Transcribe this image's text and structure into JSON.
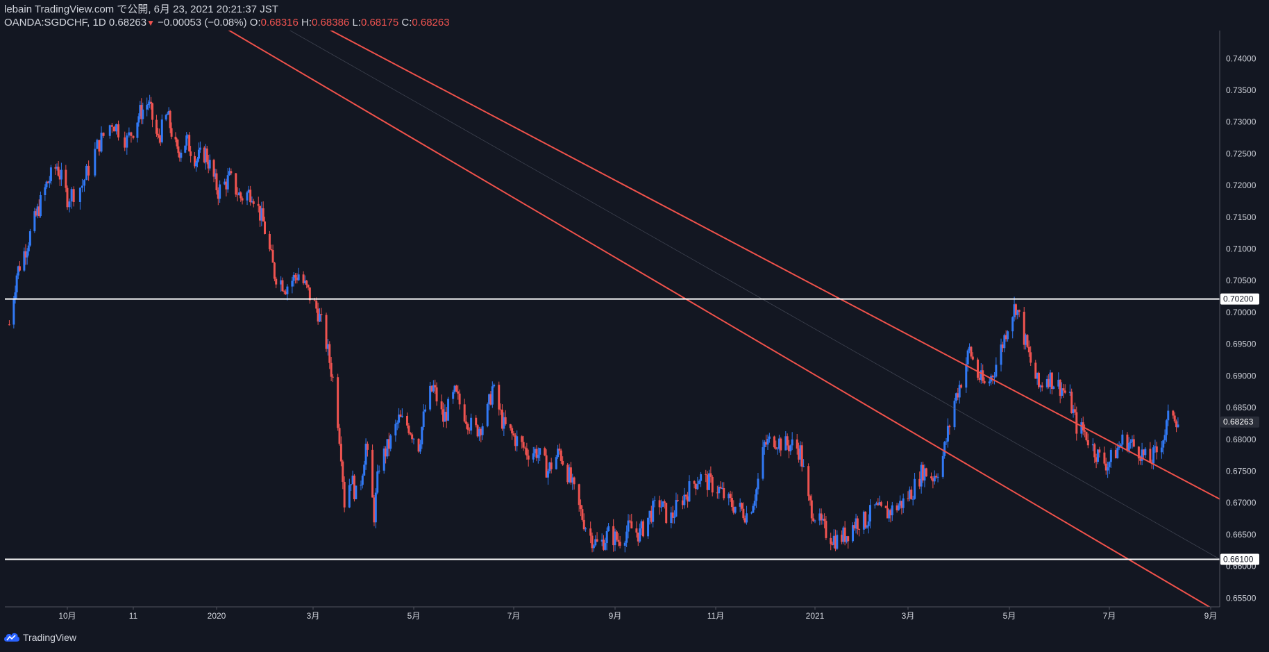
{
  "header": {
    "published": "lebain TradingView.com で公開, 6月 23, 2021 20:21:37 JST",
    "symbol_interval": "OANDA:SGDCHF, 1D",
    "last": "0.68263",
    "change_arrow": "▼",
    "change": "−0.00053 (−0.08%)",
    "o_label": "O:",
    "o_value": "0.68316",
    "h_label": "H:",
    "h_value": "0.68386",
    "l_label": "L:",
    "l_value": "0.68175",
    "c_label": "C:",
    "c_value": "0.68263"
  },
  "footer": {
    "brand": "TradingView",
    "logo_icon": "tradingview-cloud-icon"
  },
  "colors": {
    "background": "#131722",
    "up": "#3179f5",
    "down": "#ef5350",
    "trendline": "#f0524b",
    "axis_text": "#d1d4dc",
    "hline": "#ffffff"
  },
  "chart_data": {
    "type": "candlestick",
    "symbol": "OANDA:SGDCHF",
    "interval": "1D",
    "x_ticks": [
      "10月",
      "11",
      "2020",
      "3月",
      "5月",
      "7月",
      "9月",
      "11月",
      "2021",
      "3月",
      "5月",
      "7月",
      "9月"
    ],
    "y_ticks": [
      "0.74000",
      "0.73500",
      "0.73000",
      "0.72500",
      "0.72000",
      "0.71500",
      "0.71000",
      "0.70500",
      "0.70000",
      "0.69500",
      "0.69000",
      "0.68500",
      "0.68000",
      "0.67500",
      "0.67000",
      "0.66500",
      "0.66000",
      "0.65500"
    ],
    "ylim": [
      0.6535,
      0.7443
    ],
    "price_labels": [
      {
        "text": "0.70200",
        "value": 0.702,
        "style": "white"
      },
      {
        "text": "0.68263",
        "value": 0.68263,
        "style": "last"
      },
      {
        "text": "0.66100",
        "value": 0.661,
        "style": "white"
      }
    ],
    "horizontal_lines": [
      0.702,
      0.661
    ],
    "close_path": [
      [
        "2019-08-23",
        0.698
      ],
      [
        "2019-08-28",
        0.706
      ],
      [
        "2019-09-03",
        0.71
      ],
      [
        "2019-09-10",
        0.715
      ],
      [
        "2019-09-17",
        0.72
      ],
      [
        "2019-09-24",
        0.723
      ],
      [
        "2019-10-01",
        0.718
      ],
      [
        "2019-10-08",
        0.72
      ],
      [
        "2019-10-15",
        0.726
      ],
      [
        "2019-10-22",
        0.73
      ],
      [
        "2019-10-29",
        0.727
      ],
      [
        "2019-11-05",
        0.731
      ],
      [
        "2019-11-12",
        0.733
      ],
      [
        "2019-11-19",
        0.727
      ],
      [
        "2019-11-26",
        0.731
      ],
      [
        "2019-12-03",
        0.725
      ],
      [
        "2019-12-10",
        0.727
      ],
      [
        "2019-12-17",
        0.724
      ],
      [
        "2019-12-24",
        0.725
      ],
      [
        "2020-01-02",
        0.719
      ],
      [
        "2020-01-09",
        0.721
      ],
      [
        "2020-01-16",
        0.718
      ],
      [
        "2020-01-23",
        0.719
      ],
      [
        "2020-01-30",
        0.714
      ],
      [
        "2020-02-06",
        0.706
      ],
      [
        "2020-02-13",
        0.704
      ],
      [
        "2020-02-21",
        0.706
      ],
      [
        "2020-02-27",
        0.703
      ],
      [
        "2020-03-04",
        0.7
      ],
      [
        "2020-03-09",
        0.695
      ],
      [
        "2020-03-14",
        0.688
      ],
      [
        "2020-03-18",
        0.678
      ],
      [
        "2020-03-20",
        0.67
      ],
      [
        "2020-03-24",
        0.674
      ],
      [
        "2020-03-28",
        0.67
      ],
      [
        "2020-04-02",
        0.679
      ],
      [
        "2020-04-07",
        0.668
      ],
      [
        "2020-04-10",
        0.676
      ],
      [
        "2020-04-16",
        0.679
      ],
      [
        "2020-04-22",
        0.683
      ],
      [
        "2020-04-28",
        0.682
      ],
      [
        "2020-05-04",
        0.679
      ],
      [
        "2020-05-09",
        0.686
      ],
      [
        "2020-05-13",
        0.688
      ],
      [
        "2020-05-19",
        0.683
      ],
      [
        "2020-05-26",
        0.687
      ],
      [
        "2020-06-01",
        0.684
      ],
      [
        "2020-06-07",
        0.681
      ],
      [
        "2020-06-14",
        0.683
      ],
      [
        "2020-06-18",
        0.688
      ],
      [
        "2020-06-25",
        0.682
      ],
      [
        "2020-07-02",
        0.68
      ],
      [
        "2020-07-09",
        0.678
      ],
      [
        "2020-07-15",
        0.678
      ],
      [
        "2020-07-22",
        0.675
      ],
      [
        "2020-07-29",
        0.678
      ],
      [
        "2020-08-04",
        0.674
      ],
      [
        "2020-08-10",
        0.669
      ],
      [
        "2020-08-16",
        0.665
      ],
      [
        "2020-08-22",
        0.663
      ],
      [
        "2020-08-28",
        0.665
      ],
      [
        "2020-09-03",
        0.664
      ],
      [
        "2020-09-10",
        0.666
      ],
      [
        "2020-09-16",
        0.665
      ],
      [
        "2020-09-22",
        0.668
      ],
      [
        "2020-09-28",
        0.67
      ],
      [
        "2020-10-04",
        0.667
      ],
      [
        "2020-10-10",
        0.67
      ],
      [
        "2020-10-16",
        0.672
      ],
      [
        "2020-10-22",
        0.674
      ],
      [
        "2020-10-28",
        0.673
      ],
      [
        "2020-11-03",
        0.672
      ],
      [
        "2020-11-09",
        0.67
      ],
      [
        "2020-11-15",
        0.669
      ],
      [
        "2020-11-21",
        0.668
      ],
      [
        "2020-11-26",
        0.672
      ],
      [
        "2020-12-01",
        0.679
      ],
      [
        "2020-12-07",
        0.68
      ],
      [
        "2020-12-13",
        0.679
      ],
      [
        "2020-12-19",
        0.679
      ],
      [
        "2020-12-23",
        0.678
      ],
      [
        "2020-12-28",
        0.67
      ],
      [
        "2021-01-03",
        0.667
      ],
      [
        "2021-01-09",
        0.665
      ],
      [
        "2021-01-15",
        0.664
      ],
      [
        "2021-01-21",
        0.665
      ],
      [
        "2021-01-27",
        0.667
      ],
      [
        "2021-02-02",
        0.667
      ],
      [
        "2021-02-08",
        0.669
      ],
      [
        "2021-02-14",
        0.668
      ],
      [
        "2021-02-20",
        0.669
      ],
      [
        "2021-02-26",
        0.67
      ],
      [
        "2021-03-04",
        0.672
      ],
      [
        "2021-03-10",
        0.675
      ],
      [
        "2021-03-16",
        0.674
      ],
      [
        "2021-03-21",
        0.676
      ],
      [
        "2021-03-25",
        0.681
      ],
      [
        "2021-03-29",
        0.686
      ],
      [
        "2021-04-03",
        0.69
      ],
      [
        "2021-04-07",
        0.694
      ],
      [
        "2021-04-12",
        0.69
      ],
      [
        "2021-04-17",
        0.688
      ],
      [
        "2021-04-22",
        0.691
      ],
      [
        "2021-04-27",
        0.695
      ],
      [
        "2021-05-01",
        0.699
      ],
      [
        "2021-05-05",
        0.701
      ],
      [
        "2021-05-10",
        0.696
      ],
      [
        "2021-05-14",
        0.692
      ],
      [
        "2021-05-19",
        0.688
      ],
      [
        "2021-05-24",
        0.69
      ],
      [
        "2021-05-28",
        0.689
      ],
      [
        "2021-06-02",
        0.688
      ],
      [
        "2021-06-07",
        0.686
      ],
      [
        "2021-06-11",
        0.682
      ],
      [
        "2021-06-16",
        0.681
      ],
      [
        "2021-06-20",
        0.679
      ],
      [
        "2021-06-25",
        0.677
      ],
      [
        "2021-06-30",
        0.676
      ],
      [
        "2021-07-05",
        0.678
      ],
      [
        "2021-07-10",
        0.68
      ],
      [
        "2021-07-15",
        0.679
      ],
      [
        "2021-07-20",
        0.678
      ],
      [
        "2021-07-25",
        0.676
      ],
      [
        "2021-07-30",
        0.678
      ],
      [
        "2021-08-04",
        0.681
      ],
      [
        "2021-08-08",
        0.685
      ],
      [
        "2021-08-12",
        0.6826
      ]
    ],
    "trend_lines": [
      {
        "from": [
          "2020-02-21",
          0.747
        ],
        "to": [
          "2021-09-10",
          0.67
        ]
      },
      {
        "from": [
          "2019-12-20",
          0.747
        ],
        "to": [
          "2021-09-10",
          0.652
        ]
      },
      {
        "from": [
          "2020-01-28",
          0.747
        ],
        "to": [
          "2021-09-10",
          0.6605
        ],
        "faint": true
      }
    ]
  }
}
